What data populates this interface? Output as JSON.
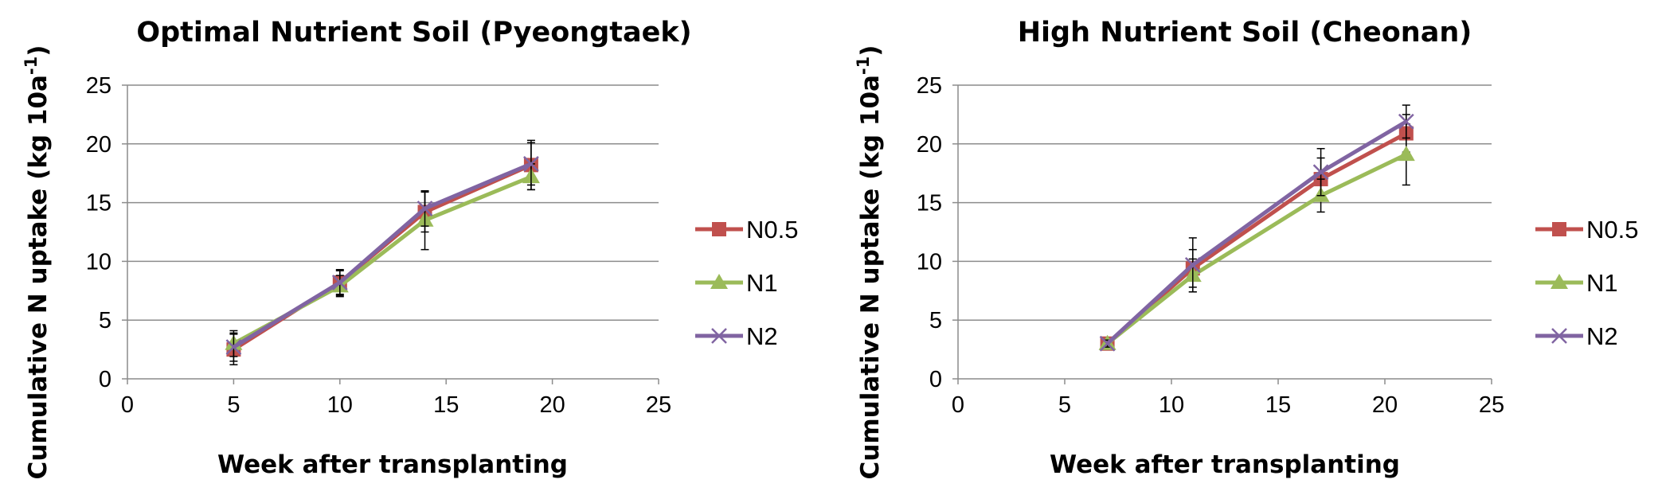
{
  "chart_data": [
    {
      "type": "line",
      "title": "Optimal Nutrient Soil (Pyeongtaek)",
      "xlabel": "Week after transplanting",
      "ylabel": "Cumulative N uptake (kg 10a",
      "ylabel_sup": "-1",
      "ylabel_close": ")",
      "xlim": [
        0,
        25
      ],
      "ylim": [
        0,
        25
      ],
      "xticks": [
        0,
        5,
        10,
        15,
        20,
        25
      ],
      "yticks": [
        0,
        5,
        10,
        15,
        20,
        25
      ],
      "grid": true,
      "legend_position": "right",
      "series": [
        {
          "name": "N0.5",
          "color": "#c0504d",
          "marker": "square",
          "x": [
            5,
            10,
            14,
            19
          ],
          "y": [
            2.5,
            8.2,
            14.2,
            18.2
          ],
          "err": [
            1.3,
            1.1,
            1.7,
            2.1
          ]
        },
        {
          "name": "N1",
          "color": "#9bbb59",
          "marker": "triangle",
          "x": [
            5,
            10,
            14,
            19
          ],
          "y": [
            3.0,
            7.9,
            13.5,
            17.2
          ],
          "err": [
            1.1,
            0.9,
            2.5,
            1.1
          ]
        },
        {
          "name": "N2",
          "color": "#8064a2",
          "marker": "x",
          "x": [
            5,
            10,
            14,
            19
          ],
          "y": [
            2.7,
            8.2,
            14.5,
            18.3
          ],
          "err": [
            1.2,
            1.0,
            1.5,
            1.8
          ]
        }
      ]
    },
    {
      "type": "line",
      "title": "High Nutrient Soil (Cheonan)",
      "xlabel": "Week after transplanting",
      "ylabel": "Cumulative N uptake (kg 10a",
      "ylabel_sup": "-1",
      "ylabel_close": ")",
      "xlim": [
        0,
        25
      ],
      "ylim": [
        0,
        25
      ],
      "xticks": [
        0,
        5,
        10,
        15,
        20,
        25
      ],
      "yticks": [
        0,
        5,
        10,
        15,
        20,
        25
      ],
      "grid": true,
      "legend_position": "right",
      "series": [
        {
          "name": "N0.5",
          "color": "#c0504d",
          "marker": "square",
          "x": [
            7,
            11,
            17,
            21
          ],
          "y": [
            3.0,
            9.4,
            17.0,
            20.9
          ],
          "err": [
            0.3,
            1.6,
            1.8,
            1.6
          ]
        },
        {
          "name": "N1",
          "color": "#9bbb59",
          "marker": "triangle",
          "x": [
            7,
            11,
            17,
            21
          ],
          "y": [
            3.0,
            8.8,
            15.6,
            19.1
          ],
          "err": [
            0.3,
            1.4,
            1.4,
            2.6
          ]
        },
        {
          "name": "N2",
          "color": "#8064a2",
          "marker": "x",
          "x": [
            7,
            11,
            17,
            21
          ],
          "y": [
            3.0,
            9.7,
            17.6,
            21.9
          ],
          "err": [
            0.3,
            2.3,
            2.0,
            1.4
          ]
        }
      ]
    }
  ]
}
